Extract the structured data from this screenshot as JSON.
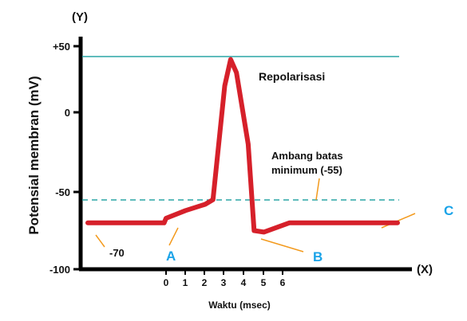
{
  "y_axis": {
    "label": "Potensial membran (mV)",
    "corner": "(Y)",
    "ticks": [
      "+50",
      "0",
      "-50",
      "-100"
    ]
  },
  "x_axis": {
    "label": "Waktu (msec)",
    "corner": "(X)",
    "ticks": [
      "0",
      "1",
      "2",
      "3",
      "4",
      "5",
      "6"
    ]
  },
  "annotations": {
    "repolarisasi": "Repolarisasi",
    "threshold_line1": "Ambang batas",
    "threshold_line2": "minimum (-55)",
    "resting": "-70"
  },
  "points": {
    "a": "A",
    "b": "B",
    "c": "C"
  },
  "chart_data": {
    "type": "line",
    "x": [
      -4,
      -0.1,
      0,
      1,
      2,
      2.4,
      3.0,
      3.3,
      3.6,
      4.2,
      4.5,
      5.0,
      6.3,
      12
    ],
    "y": [
      -70,
      -70,
      -67,
      -62,
      -58,
      -55,
      20,
      40,
      30,
      -20,
      -75,
      -76,
      -70,
      -70
    ],
    "ylim": [
      -100,
      50
    ],
    "threshold": -55,
    "peak": 40,
    "grid": false,
    "colors": {
      "trace": "#d6202a",
      "reference_lines": "#2aa6a6",
      "leaders": "#f39a1d",
      "point_labels": "#1aa3e8",
      "axes": "#000000"
    }
  }
}
